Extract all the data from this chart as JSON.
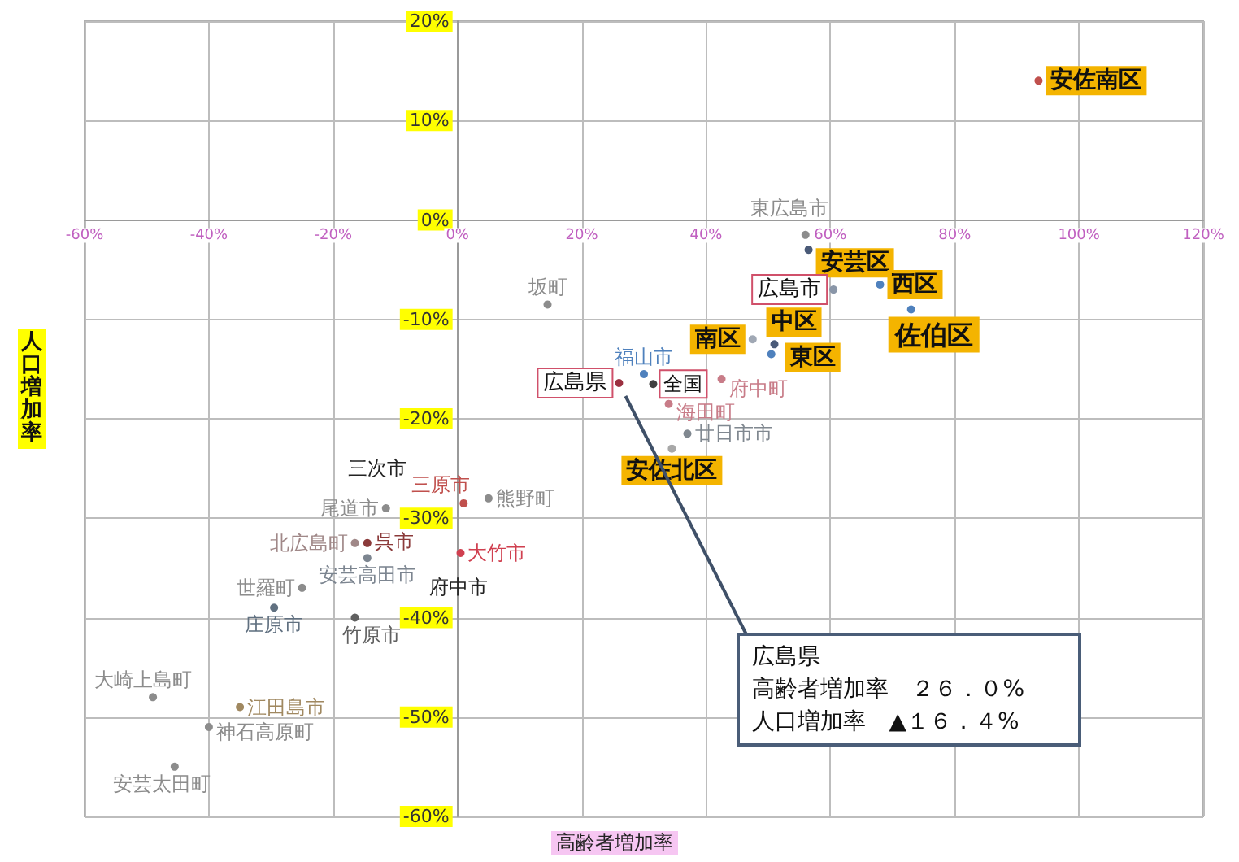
{
  "chart_data": {
    "type": "scatter",
    "xlabel": "高齢者増加率",
    "ylabel": "人口増加率",
    "xlim": [
      -60,
      120
    ],
    "ylim": [
      -60,
      20
    ],
    "xticks": [
      {
        "value": -60,
        "label": "-60%"
      },
      {
        "value": -40,
        "label": "-40%"
      },
      {
        "value": -20,
        "label": "-20%"
      },
      {
        "value": 0,
        "label": "0%"
      },
      {
        "value": 20,
        "label": "20%"
      },
      {
        "value": 40,
        "label": "40%"
      },
      {
        "value": 60,
        "label": "60%"
      },
      {
        "value": 80,
        "label": "80%"
      },
      {
        "value": 100,
        "label": "100%"
      },
      {
        "value": 120,
        "label": "120%"
      }
    ],
    "yticks": [
      {
        "value": -60,
        "label": "-60%"
      },
      {
        "value": -50,
        "label": "-50%"
      },
      {
        "value": -40,
        "label": "-40%"
      },
      {
        "value": -30,
        "label": "-30%"
      },
      {
        "value": -20,
        "label": "-20%"
      },
      {
        "value": -10,
        "label": "-10%"
      },
      {
        "value": 0,
        "label": "0%"
      },
      {
        "value": 10,
        "label": "10%"
      },
      {
        "value": 20,
        "label": "20%"
      }
    ],
    "grid": true,
    "marker": "circle",
    "series": [
      {
        "name": "安佐南区",
        "color": "#c0504d",
        "x": [
          93.5
        ],
        "values": [
          14
        ]
      },
      {
        "name": "東広島市",
        "color": "#8c8c8c",
        "x": [
          56
        ],
        "values": [
          -1.5
        ]
      },
      {
        "name": "安芸区",
        "color": "#4a5a78",
        "x": [
          56.5
        ],
        "values": [
          -3
        ]
      },
      {
        "name": "広島市",
        "color": "#8a96a8",
        "x": [
          60.5
        ],
        "values": [
          -7
        ]
      },
      {
        "name": "西区",
        "color": "#4f81bd",
        "x": [
          68
        ],
        "values": [
          -6.5
        ]
      },
      {
        "name": "佐伯区",
        "color": "#4f81bd",
        "x": [
          73
        ],
        "values": [
          -9
        ]
      },
      {
        "name": "南区",
        "color": "#a0a8b4",
        "x": [
          47.5
        ],
        "values": [
          -12
        ]
      },
      {
        "name": "中区",
        "color": "#4a5a78",
        "x": [
          51
        ],
        "values": [
          -12.5
        ]
      },
      {
        "name": "東区",
        "color": "#4f81bd",
        "x": [
          50.5
        ],
        "values": [
          -13.5
        ]
      },
      {
        "name": "福山市",
        "color": "#4f81bd",
        "x": [
          30
        ],
        "values": [
          -15.5
        ]
      },
      {
        "name": "広島県",
        "color": "#9b3040",
        "x": [
          26.0
        ],
        "values": [
          -16.4
        ]
      },
      {
        "name": "全国",
        "color": "#404040",
        "x": [
          31.5
        ],
        "values": [
          -16.5
        ]
      },
      {
        "name": "府中町",
        "color": "#c87c88",
        "x": [
          42.5
        ],
        "values": [
          -16
        ]
      },
      {
        "name": "海田町",
        "color": "#c87c88",
        "x": [
          34
        ],
        "values": [
          -18.5
        ]
      },
      {
        "name": "廿日市市",
        "color": "#808890",
        "x": [
          37
        ],
        "values": [
          -21.5
        ]
      },
      {
        "name": "安佐北区",
        "color": "#a8a8a8",
        "x": [
          34.5
        ],
        "values": [
          -23
        ]
      },
      {
        "name": "坂町",
        "color": "#8c8c8c",
        "x": [
          14.5
        ],
        "values": [
          -8.5
        ]
      },
      {
        "name": "三原市",
        "color": "#c0504d",
        "x": [
          1
        ],
        "values": [
          -28.5
        ]
      },
      {
        "name": "熊野町",
        "color": "#8c8c8c",
        "x": [
          5
        ],
        "values": [
          -28
        ]
      },
      {
        "name": "大竹市",
        "color": "#d04050",
        "x": [
          0.5
        ],
        "values": [
          -33.5
        ]
      },
      {
        "name": "尾道市",
        "color": "#8c8c8c",
        "x": [
          -11.5
        ],
        "values": [
          -29
        ]
      },
      {
        "name": "北広島町",
        "color": "#a08888",
        "x": [
          -16.5
        ],
        "values": [
          -32.5
        ]
      },
      {
        "name": "呉市",
        "color": "#8b3a3a",
        "x": [
          -14.5
        ],
        "values": [
          -32.5
        ]
      },
      {
        "name": "安芸高田市",
        "color": "#7c8590",
        "x": [
          -14.5
        ],
        "values": [
          -34
        ]
      },
      {
        "name": "世羅町",
        "color": "#8c8c8c",
        "x": [
          -25
        ],
        "values": [
          -37
        ]
      },
      {
        "name": "庄原市",
        "color": "#607080",
        "x": [
          -29.5
        ],
        "values": [
          -39
        ]
      },
      {
        "name": "竹原市",
        "color": "#606060",
        "x": [
          -16.5
        ],
        "values": [
          -40
        ]
      },
      {
        "name": "大崎上島町",
        "color": "#8c8c8c",
        "x": [
          -49
        ],
        "values": [
          -48
        ]
      },
      {
        "name": "江田島市",
        "color": "#a08860",
        "x": [
          -35
        ],
        "values": [
          -49
        ]
      },
      {
        "name": "神石高原町",
        "color": "#8c8c8c",
        "x": [
          -40
        ],
        "values": [
          -51
        ]
      },
      {
        "name": "安芸太田町",
        "color": "#8c8c8c",
        "x": [
          -45.5
        ],
        "values": [
          -55
        ]
      }
    ],
    "annotations": [
      {
        "text": "広島県",
        "x": 26.0,
        "y": -16.4
      },
      "高齢者増加率　２６．０%",
      "人口増加率　▲１６．４%",
      "三次市",
      "府中市"
    ]
  }
}
